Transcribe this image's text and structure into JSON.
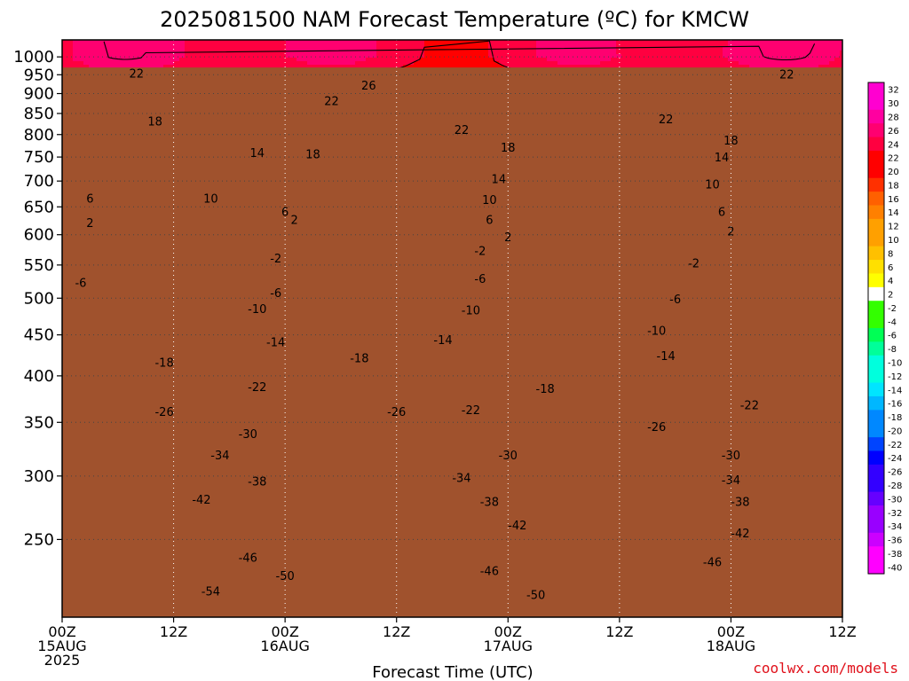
{
  "colors": {
    "palette": [
      "#ff00ff",
      "#cc00ff",
      "#9900ff",
      "#6600ff",
      "#3300ff",
      "#0000ff",
      "#0044ff",
      "#0088ff",
      "#00b7ff",
      "#00e5ff",
      "#00ffdd",
      "#00ff99",
      "#00ff55",
      "#33ff00",
      "#ffffff",
      "#ffff00",
      "#ffe000",
      "#ffc000",
      "#ffa000",
      "#ff8000",
      "#ff6000",
      "#ff3000",
      "#ff0000",
      "#ff0040",
      "#ff0070",
      "#ff00a0",
      "#ff00d0",
      "#ff00ff"
    ],
    "ground": "#a0522d",
    "freezing_line": "#e81e8c",
    "credit": "#e0101a"
  },
  "chart_data": {
    "type": "heatmap",
    "title": "2025081500 NAM Forecast Temperature (ºC) for KMCW",
    "xlabel": "Forecast Time (UTC)",
    "ylabel": "",
    "credit": "coolwx.com/models",
    "y_scale": "log-pressure",
    "y_range_hPa": [
      1050,
      200
    ],
    "y_ticks": [
      "250",
      "300",
      "350",
      "400",
      "450",
      "500",
      "550",
      "600",
      "650",
      "700",
      "750",
      "800",
      "850",
      "900",
      "950",
      "1000"
    ],
    "x_range_hours": [
      0,
      84
    ],
    "x_ticks": [
      {
        "hour": 0,
        "line1": "00Z",
        "line2": "15AUG",
        "line3": "2025"
      },
      {
        "hour": 12,
        "line1": "12Z",
        "line2": "",
        "line3": ""
      },
      {
        "hour": 24,
        "line1": "00Z",
        "line2": "16AUG",
        "line3": ""
      },
      {
        "hour": 36,
        "line1": "12Z",
        "line2": "",
        "line3": ""
      },
      {
        "hour": 48,
        "line1": "00Z",
        "line2": "17AUG",
        "line3": ""
      },
      {
        "hour": 60,
        "line1": "12Z",
        "line2": "",
        "line3": ""
      },
      {
        "hour": 72,
        "line1": "00Z",
        "line2": "18AUG",
        "line3": ""
      },
      {
        "hour": 84,
        "line1": "12Z",
        "line2": "",
        "line3": ""
      }
    ],
    "colorbar_ticks": [
      "32",
      "30",
      "28",
      "26",
      "24",
      "22",
      "20",
      "18",
      "16",
      "14",
      "12",
      "10",
      "8",
      "6",
      "4",
      "2",
      "-2",
      "-4",
      "-6",
      "-8",
      "-10",
      "-12",
      "-14",
      "-16",
      "-18",
      "-20",
      "-22",
      "-24",
      "-26",
      "-28",
      "-30",
      "-32",
      "-34",
      "-36",
      "-38",
      "-40"
    ],
    "surface_pressure_hPa": 970,
    "contour_levels": [
      -54,
      -50,
      -46,
      -42,
      -38,
      -34,
      -30,
      -26,
      -22,
      -18,
      -14,
      -10,
      -6,
      -2,
      2,
      6,
      10,
      14,
      18,
      22,
      26
    ],
    "temperature_profile": [
      {
        "p": 1000,
        "t": 24
      },
      {
        "p": 970,
        "t": 23
      },
      {
        "p": 950,
        "t": 21
      },
      {
        "p": 900,
        "t": 19
      },
      {
        "p": 850,
        "t": 18
      },
      {
        "p": 800,
        "t": 15
      },
      {
        "p": 750,
        "t": 12
      },
      {
        "p": 700,
        "t": 8
      },
      {
        "p": 650,
        "t": 5
      },
      {
        "p": 600,
        "t": 1
      },
      {
        "p": 550,
        "t": -5
      },
      {
        "p": 500,
        "t": -8
      },
      {
        "p": 450,
        "t": -13
      },
      {
        "p": 400,
        "t": -19
      },
      {
        "p": 350,
        "t": -26
      },
      {
        "p": 300,
        "t": -33
      },
      {
        "p": 250,
        "t": -42
      },
      {
        "p": 200,
        "t": -54
      }
    ],
    "contour_labels": [
      {
        "hour": 16,
        "p": 215,
        "text": "-54"
      },
      {
        "hour": 24,
        "p": 225,
        "text": "-50"
      },
      {
        "hour": 51,
        "p": 213,
        "text": "-50"
      },
      {
        "hour": 20,
        "p": 237,
        "text": "-46"
      },
      {
        "hour": 46,
        "p": 228,
        "text": "-46"
      },
      {
        "hour": 70,
        "p": 234,
        "text": "-46"
      },
      {
        "hour": 15,
        "p": 280,
        "text": "-42"
      },
      {
        "hour": 49,
        "p": 260,
        "text": "-42"
      },
      {
        "hour": 73,
        "p": 254,
        "text": "-42"
      },
      {
        "hour": 21,
        "p": 295,
        "text": "-38"
      },
      {
        "hour": 46,
        "p": 278,
        "text": "-38"
      },
      {
        "hour": 73,
        "p": 278,
        "text": "-38"
      },
      {
        "hour": 17,
        "p": 318,
        "text": "-34"
      },
      {
        "hour": 43,
        "p": 298,
        "text": "-34"
      },
      {
        "hour": 72,
        "p": 296,
        "text": "-34"
      },
      {
        "hour": 20,
        "p": 338,
        "text": "-30"
      },
      {
        "hour": 48,
        "p": 318,
        "text": "-30"
      },
      {
        "hour": 72,
        "p": 318,
        "text": "-30"
      },
      {
        "hour": 11,
        "p": 360,
        "text": "-26"
      },
      {
        "hour": 36,
        "p": 360,
        "text": "-26"
      },
      {
        "hour": 64,
        "p": 345,
        "text": "-26"
      },
      {
        "hour": 21,
        "p": 387,
        "text": "-22"
      },
      {
        "hour": 44,
        "p": 362,
        "text": "-22"
      },
      {
        "hour": 74,
        "p": 367,
        "text": "-22"
      },
      {
        "hour": 11,
        "p": 415,
        "text": "-18"
      },
      {
        "hour": 32,
        "p": 420,
        "text": "-18"
      },
      {
        "hour": 52,
        "p": 385,
        "text": "-18"
      },
      {
        "hour": 23,
        "p": 440,
        "text": "-14"
      },
      {
        "hour": 41,
        "p": 443,
        "text": "-14"
      },
      {
        "hour": 65,
        "p": 423,
        "text": "-14"
      },
      {
        "hour": 21,
        "p": 484,
        "text": "-10"
      },
      {
        "hour": 44,
        "p": 482,
        "text": "-10"
      },
      {
        "hour": 64,
        "p": 455,
        "text": "-10"
      },
      {
        "hour": 2,
        "p": 522,
        "text": "-6"
      },
      {
        "hour": 23,
        "p": 507,
        "text": "-6"
      },
      {
        "hour": 45,
        "p": 528,
        "text": "-6"
      },
      {
        "hour": 66,
        "p": 498,
        "text": "-6"
      },
      {
        "hour": 23,
        "p": 560,
        "text": "-2"
      },
      {
        "hour": 45,
        "p": 572,
        "text": "-2"
      },
      {
        "hour": 68,
        "p": 552,
        "text": "-2"
      },
      {
        "hour": 3,
        "p": 620,
        "text": "2"
      },
      {
        "hour": 25,
        "p": 625,
        "text": "2"
      },
      {
        "hour": 48,
        "p": 595,
        "text": "2"
      },
      {
        "hour": 72,
        "p": 605,
        "text": "2"
      },
      {
        "hour": 3,
        "p": 665,
        "text": "6"
      },
      {
        "hour": 24,
        "p": 640,
        "text": "6"
      },
      {
        "hour": 46,
        "p": 625,
        "text": "6"
      },
      {
        "hour": 71,
        "p": 640,
        "text": "6"
      },
      {
        "hour": 16,
        "p": 665,
        "text": "10"
      },
      {
        "hour": 46,
        "p": 662,
        "text": "10"
      },
      {
        "hour": 70,
        "p": 692,
        "text": "10"
      },
      {
        "hour": 47,
        "p": 703,
        "text": "14"
      },
      {
        "hour": 21,
        "p": 758,
        "text": "14"
      },
      {
        "hour": 71,
        "p": 748,
        "text": "14"
      },
      {
        "hour": 27,
        "p": 755,
        "text": "18"
      },
      {
        "hour": 48,
        "p": 770,
        "text": "18"
      },
      {
        "hour": 72,
        "p": 785,
        "text": "18"
      },
      {
        "hour": 10,
        "p": 830,
        "text": "18"
      },
      {
        "hour": 43,
        "p": 810,
        "text": "22"
      },
      {
        "hour": 65,
        "p": 835,
        "text": "22"
      },
      {
        "hour": 29,
        "p": 880,
        "text": "22"
      },
      {
        "hour": 8,
        "p": 952,
        "text": "22"
      },
      {
        "hour": 33,
        "p": 920,
        "text": "26"
      },
      {
        "hour": 78,
        "p": 950,
        "text": "22"
      }
    ]
  }
}
